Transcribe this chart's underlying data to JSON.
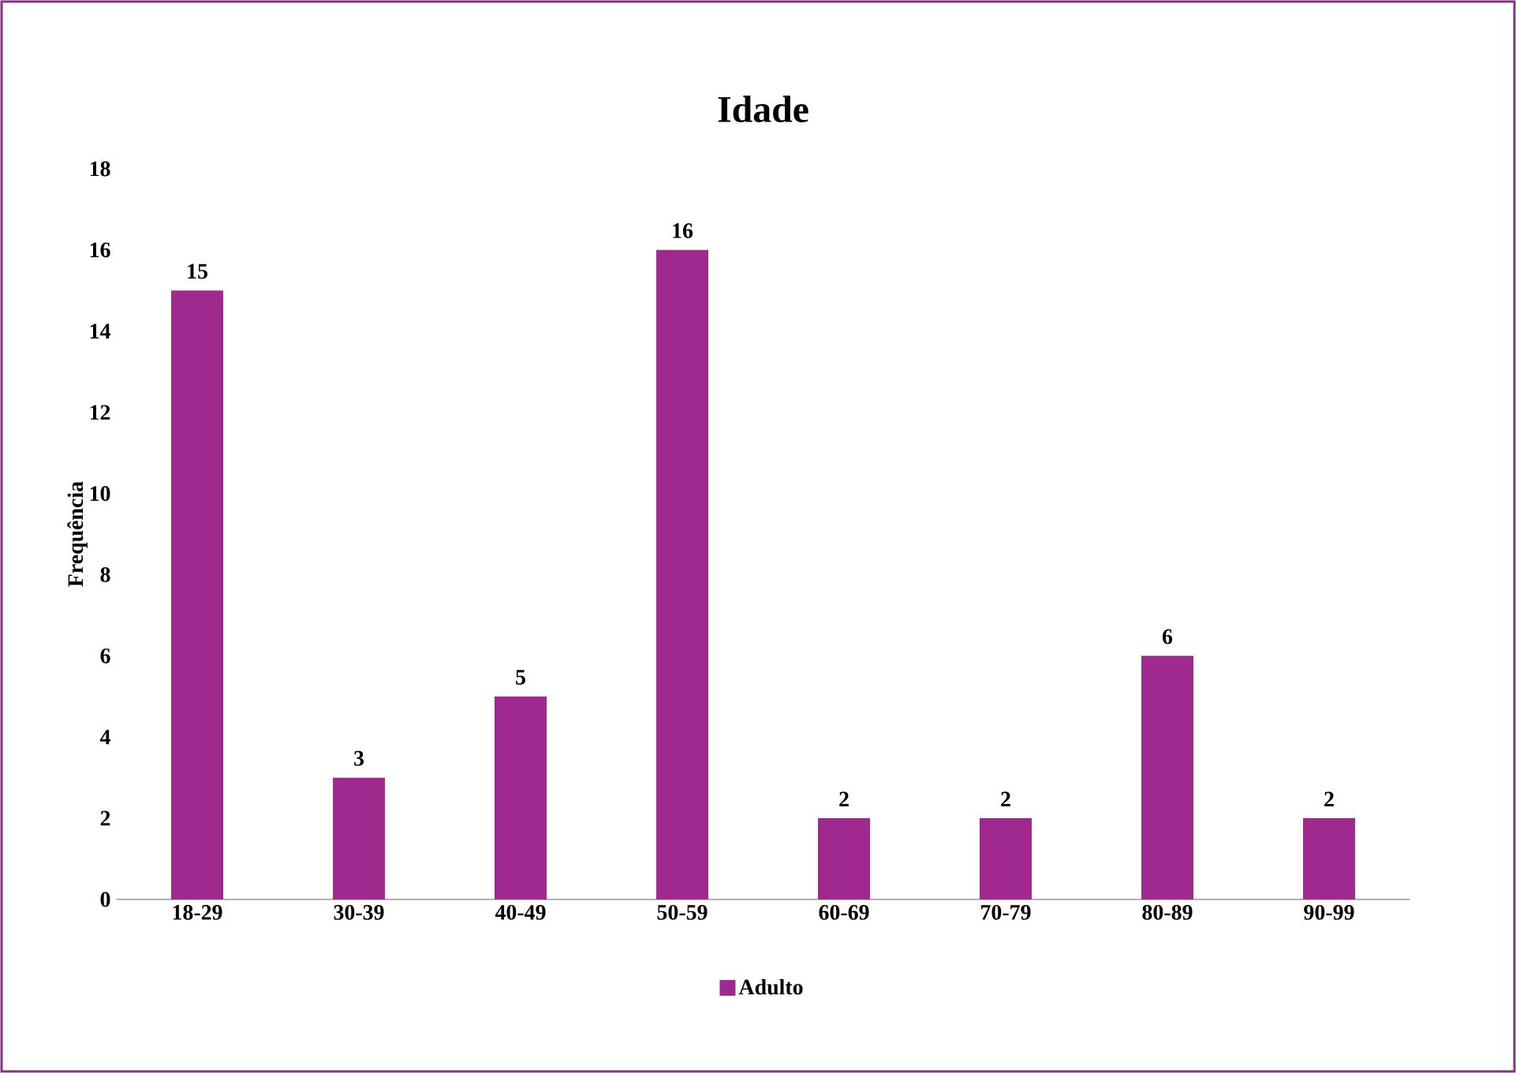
{
  "chart_data": {
    "type": "bar",
    "title": "Idade",
    "ylabel": "Frequência",
    "categories": [
      "18-29",
      "30-39",
      "40-49",
      "50-59",
      "60-69",
      "70-79",
      "80-89",
      "90-99"
    ],
    "series": [
      {
        "name": "Adulto",
        "color": "#a0298f",
        "values": [
          15,
          3,
          5,
          16,
          2,
          2,
          6,
          2
        ]
      }
    ],
    "ylim": [
      0,
      18
    ],
    "yticks": [
      0,
      2,
      4,
      6,
      8,
      10,
      12,
      14,
      16,
      18
    ],
    "data_labels": true,
    "legend": "bottom",
    "grid": false
  }
}
